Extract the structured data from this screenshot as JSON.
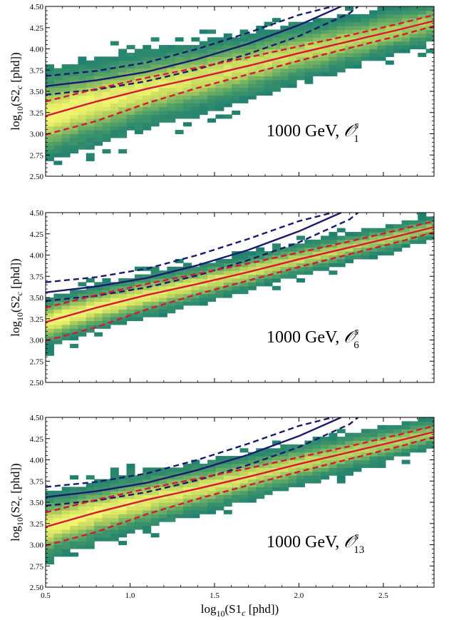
{
  "chart_data": [
    {
      "type": "heatmap",
      "annotation": {
        "text": "1000 GeV, ",
        "operator": "𝒪",
        "sup": "s",
        "sub": "1"
      },
      "ylabel": {
        "pre": "log",
        "sub": "10",
        "mid": "(S2",
        "subc": "c",
        "post": " [phd])"
      },
      "xlim": [
        0.5,
        2.8
      ],
      "ylim": [
        2.5,
        4.5
      ],
      "yticks": [
        "2.50",
        "2.75",
        "3.00",
        "3.25",
        "3.50",
        "3.75",
        "4.00",
        "4.25",
        "4.50"
      ],
      "spread": 1.35,
      "colormap": "yellow-green (viridis-like, truncated)",
      "series": [
        {
          "style": "solid",
          "color": "#1a1a6e",
          "x": [
            0.5,
            0.8,
            1.1,
            1.4,
            1.7,
            2.0,
            2.25
          ],
          "y": [
            3.56,
            3.63,
            3.73,
            3.88,
            4.06,
            4.28,
            4.5
          ]
        },
        {
          "style": "dashed",
          "color": "#1a1a6e",
          "x": [
            0.5,
            0.8,
            1.1,
            1.4,
            1.7,
            2.0,
            2.2
          ],
          "y": [
            3.68,
            3.74,
            3.84,
            4.0,
            4.19,
            4.4,
            4.5
          ]
        },
        {
          "style": "dashed",
          "color": "#1a1a6e",
          "x": [
            0.5,
            0.8,
            1.1,
            1.4,
            1.7,
            2.0,
            2.3,
            2.35
          ],
          "y": [
            3.46,
            3.52,
            3.62,
            3.76,
            3.94,
            4.15,
            4.42,
            4.5
          ]
        },
        {
          "style": "solid",
          "color": "#d4173a",
          "x": [
            0.5,
            0.8,
            1.1,
            1.4,
            1.7,
            2.0,
            2.3,
            2.6,
            2.8
          ],
          "y": [
            3.21,
            3.38,
            3.53,
            3.66,
            3.8,
            3.95,
            4.09,
            4.23,
            4.33
          ]
        },
        {
          "style": "dashed",
          "color": "#d4173a",
          "x": [
            0.5,
            0.8,
            1.1,
            1.4,
            1.7,
            2.0,
            2.3,
            2.6,
            2.8
          ],
          "y": [
            3.38,
            3.53,
            3.66,
            3.78,
            3.9,
            4.03,
            4.16,
            4.3,
            4.4
          ]
        },
        {
          "style": "dashed",
          "color": "#d4173a",
          "x": [
            0.5,
            0.8,
            1.1,
            1.4,
            1.7,
            2.0,
            2.3,
            2.6,
            2.8
          ],
          "y": [
            2.99,
            3.15,
            3.36,
            3.54,
            3.7,
            3.86,
            4.01,
            4.16,
            4.27
          ]
        }
      ]
    },
    {
      "type": "heatmap",
      "annotation": {
        "text": "1000 GeV, ",
        "operator": "𝒪",
        "sup": "s",
        "sub": "6"
      },
      "ylabel": {
        "pre": "log",
        "sub": "10",
        "mid": "(S2",
        "subc": "c",
        "post": " [phd])"
      },
      "xlim": [
        0.5,
        2.8
      ],
      "ylim": [
        2.5,
        4.5
      ],
      "yticks": [
        "2.50",
        "2.75",
        "3.00",
        "3.25",
        "3.50",
        "3.75",
        "4.00",
        "4.25",
        "4.50"
      ],
      "spread": 0.75,
      "colormap": "yellow-green (viridis-like, truncated)",
      "series": [
        {
          "style": "solid",
          "color": "#1a1a6e",
          "x": [
            0.5,
            0.8,
            1.1,
            1.4,
            1.7,
            2.0,
            2.25
          ],
          "y": [
            3.56,
            3.63,
            3.73,
            3.88,
            4.06,
            4.28,
            4.5
          ]
        },
        {
          "style": "dashed",
          "color": "#1a1a6e",
          "x": [
            0.5,
            0.8,
            1.1,
            1.4,
            1.7,
            2.0,
            2.2
          ],
          "y": [
            3.68,
            3.74,
            3.84,
            4.0,
            4.19,
            4.4,
            4.5
          ]
        },
        {
          "style": "dashed",
          "color": "#1a1a6e",
          "x": [
            0.5,
            0.8,
            1.1,
            1.4,
            1.7,
            2.0,
            2.3,
            2.35
          ],
          "y": [
            3.46,
            3.52,
            3.62,
            3.76,
            3.94,
            4.15,
            4.42,
            4.5
          ]
        },
        {
          "style": "solid",
          "color": "#d4173a",
          "x": [
            0.5,
            0.8,
            1.1,
            1.4,
            1.7,
            2.0,
            2.3,
            2.6,
            2.8
          ],
          "y": [
            3.21,
            3.38,
            3.53,
            3.66,
            3.8,
            3.95,
            4.09,
            4.23,
            4.33
          ]
        },
        {
          "style": "dashed",
          "color": "#d4173a",
          "x": [
            0.5,
            0.8,
            1.1,
            1.4,
            1.7,
            2.0,
            2.3,
            2.6,
            2.8
          ],
          "y": [
            3.38,
            3.53,
            3.66,
            3.78,
            3.9,
            4.03,
            4.16,
            4.3,
            4.4
          ]
        },
        {
          "style": "dashed",
          "color": "#d4173a",
          "x": [
            0.5,
            0.8,
            1.1,
            1.4,
            1.7,
            2.0,
            2.3,
            2.6,
            2.8
          ],
          "y": [
            2.99,
            3.15,
            3.36,
            3.54,
            3.7,
            3.86,
            4.01,
            4.16,
            4.27
          ]
        }
      ]
    },
    {
      "type": "heatmap",
      "annotation": {
        "text": "1000 GeV, ",
        "operator": "𝒪",
        "sup": "s",
        "sub": "13"
      },
      "ylabel": {
        "pre": "log",
        "sub": "10",
        "mid": "(S2",
        "subc": "c",
        "post": " [phd])"
      },
      "xlabel": {
        "pre": "log",
        "sub": "10",
        "mid": "(S1",
        "subc": "c",
        "post": " [phd])"
      },
      "xlim": [
        0.5,
        2.8
      ],
      "ylim": [
        2.5,
        4.5
      ],
      "xticks": [
        "0.5",
        "1.0",
        "1.5",
        "2.0",
        "2.5"
      ],
      "yticks": [
        "2.50",
        "2.75",
        "3.00",
        "3.25",
        "3.50",
        "3.75",
        "4.00",
        "4.25",
        "4.50"
      ],
      "spread": 1.0,
      "colormap": "yellow-green (viridis-like, truncated)",
      "series": [
        {
          "style": "solid",
          "color": "#1a1a6e",
          "x": [
            0.5,
            0.8,
            1.1,
            1.4,
            1.7,
            2.0,
            2.25
          ],
          "y": [
            3.56,
            3.63,
            3.73,
            3.88,
            4.06,
            4.28,
            4.5
          ]
        },
        {
          "style": "dashed",
          "color": "#1a1a6e",
          "x": [
            0.5,
            0.8,
            1.1,
            1.4,
            1.7,
            2.0,
            2.2
          ],
          "y": [
            3.68,
            3.74,
            3.84,
            4.0,
            4.19,
            4.4,
            4.5
          ]
        },
        {
          "style": "dashed",
          "color": "#1a1a6e",
          "x": [
            0.5,
            0.8,
            1.1,
            1.4,
            1.7,
            2.0,
            2.3,
            2.35
          ],
          "y": [
            3.46,
            3.52,
            3.62,
            3.76,
            3.94,
            4.15,
            4.42,
            4.5
          ]
        },
        {
          "style": "solid",
          "color": "#d4173a",
          "x": [
            0.5,
            0.8,
            1.1,
            1.4,
            1.7,
            2.0,
            2.3,
            2.6,
            2.8
          ],
          "y": [
            3.21,
            3.38,
            3.53,
            3.66,
            3.8,
            3.95,
            4.09,
            4.23,
            4.33
          ]
        },
        {
          "style": "dashed",
          "color": "#d4173a",
          "x": [
            0.5,
            0.8,
            1.1,
            1.4,
            1.7,
            2.0,
            2.3,
            2.6,
            2.8
          ],
          "y": [
            3.38,
            3.53,
            3.66,
            3.78,
            3.9,
            4.03,
            4.16,
            4.3,
            4.4
          ]
        },
        {
          "style": "dashed",
          "color": "#d4173a",
          "x": [
            0.5,
            0.8,
            1.1,
            1.4,
            1.7,
            2.0,
            2.3,
            2.6,
            2.8
          ],
          "y": [
            2.99,
            3.15,
            3.36,
            3.54,
            3.7,
            3.86,
            4.01,
            4.16,
            4.27
          ]
        }
      ]
    }
  ]
}
